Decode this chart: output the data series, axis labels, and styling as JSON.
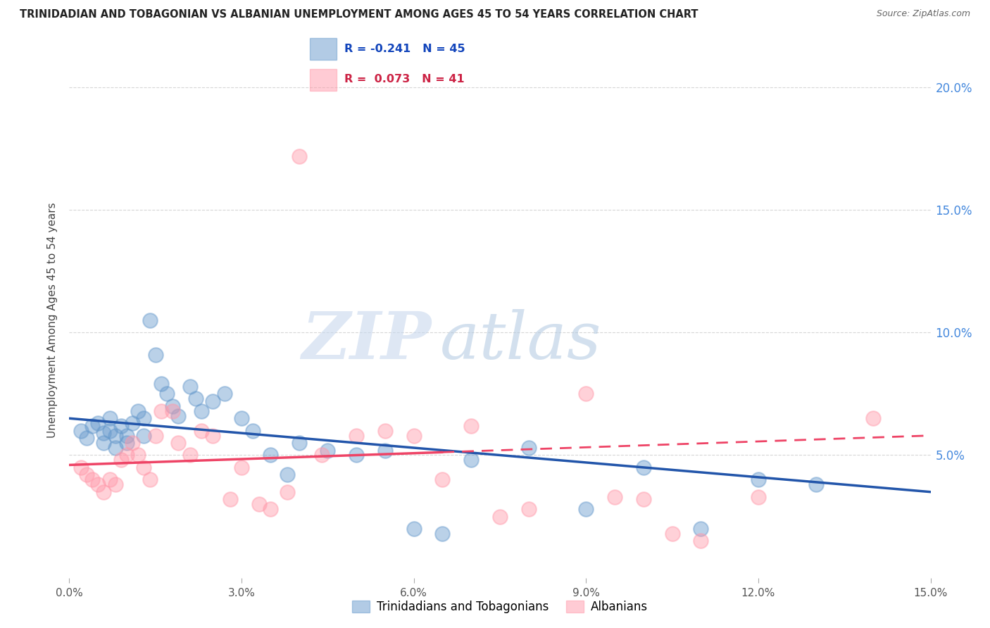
{
  "title": "TRINIDADIAN AND TOBAGONIAN VS ALBANIAN UNEMPLOYMENT AMONG AGES 45 TO 54 YEARS CORRELATION CHART",
  "source": "Source: ZipAtlas.com",
  "ylabel": "Unemployment Among Ages 45 to 54 years",
  "xlim": [
    0.0,
    0.15
  ],
  "ylim": [
    0.0,
    0.21
  ],
  "xticks": [
    0.0,
    0.03,
    0.06,
    0.09,
    0.12,
    0.15
  ],
  "xticklabels": [
    "0.0%",
    "3.0%",
    "6.0%",
    "9.0%",
    "12.0%",
    "15.0%"
  ],
  "yticks": [
    0.05,
    0.1,
    0.15,
    0.2
  ],
  "yticklabels": [
    "5.0%",
    "10.0%",
    "15.0%",
    "20.0%"
  ],
  "blue_color": "#6699cc",
  "pink_color": "#ff99aa",
  "blue_line_color": "#2255aa",
  "pink_line_color": "#ee4466",
  "grid_color": "#cccccc",
  "background_color": "#ffffff",
  "watermark_zip": "ZIP",
  "watermark_atlas": "atlas",
  "legend_R_blue": "-0.241",
  "legend_N_blue": "45",
  "legend_R_pink": "0.073",
  "legend_N_pink": "41",
  "legend_label_blue": "Trinidadians and Tobagonians",
  "legend_label_pink": "Albanians",
  "blue_scatter_x": [
    0.002,
    0.003,
    0.004,
    0.005,
    0.006,
    0.006,
    0.007,
    0.007,
    0.008,
    0.008,
    0.009,
    0.01,
    0.01,
    0.011,
    0.012,
    0.013,
    0.013,
    0.014,
    0.015,
    0.016,
    0.017,
    0.018,
    0.019,
    0.021,
    0.022,
    0.023,
    0.025,
    0.027,
    0.03,
    0.032,
    0.035,
    0.038,
    0.04,
    0.045,
    0.05,
    0.055,
    0.06,
    0.065,
    0.07,
    0.08,
    0.09,
    0.1,
    0.11,
    0.12,
    0.13
  ],
  "blue_scatter_y": [
    0.06,
    0.057,
    0.062,
    0.063,
    0.059,
    0.055,
    0.065,
    0.06,
    0.058,
    0.053,
    0.062,
    0.058,
    0.055,
    0.063,
    0.068,
    0.065,
    0.058,
    0.105,
    0.091,
    0.079,
    0.075,
    0.07,
    0.066,
    0.078,
    0.073,
    0.068,
    0.072,
    0.075,
    0.065,
    0.06,
    0.05,
    0.042,
    0.055,
    0.052,
    0.05,
    0.052,
    0.02,
    0.018,
    0.048,
    0.053,
    0.028,
    0.045,
    0.02,
    0.04,
    0.038
  ],
  "pink_scatter_x": [
    0.002,
    0.003,
    0.004,
    0.005,
    0.006,
    0.007,
    0.008,
    0.009,
    0.01,
    0.011,
    0.012,
    0.013,
    0.014,
    0.015,
    0.016,
    0.018,
    0.019,
    0.021,
    0.023,
    0.025,
    0.028,
    0.03,
    0.033,
    0.035,
    0.038,
    0.04,
    0.044,
    0.05,
    0.055,
    0.06,
    0.065,
    0.07,
    0.075,
    0.08,
    0.09,
    0.095,
    0.1,
    0.105,
    0.11,
    0.12,
    0.14
  ],
  "pink_scatter_y": [
    0.045,
    0.042,
    0.04,
    0.038,
    0.035,
    0.04,
    0.038,
    0.048,
    0.05,
    0.055,
    0.05,
    0.045,
    0.04,
    0.058,
    0.068,
    0.068,
    0.055,
    0.05,
    0.06,
    0.058,
    0.032,
    0.045,
    0.03,
    0.028,
    0.035,
    0.172,
    0.05,
    0.058,
    0.06,
    0.058,
    0.04,
    0.062,
    0.025,
    0.028,
    0.075,
    0.033,
    0.032,
    0.018,
    0.015,
    0.033,
    0.065
  ],
  "blue_trend_start_y": 0.065,
  "blue_trend_end_y": 0.035,
  "pink_trend_start_y": 0.046,
  "pink_trend_end_y": 0.058
}
